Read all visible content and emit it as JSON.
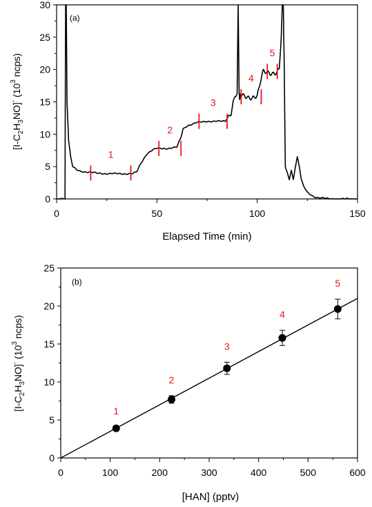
{
  "chart_data": [
    {
      "type": "line",
      "panel_label": "(a)",
      "xlabel": "Elapsed Time (min)",
      "ylabel": {
        "main": "[I-C",
        "sub1": "2",
        "mid1": "H",
        "sub2": "3",
        "mid2": "NO]",
        "sup1": "-",
        "unit_open": " (10",
        "sup2": "3",
        "unit_close": " ncps)"
      },
      "xlim": [
        0,
        150
      ],
      "ylim": [
        0,
        30
      ],
      "xticks": [
        0,
        50,
        100,
        150
      ],
      "yticks": [
        0,
        5,
        10,
        15,
        20,
        25,
        30
      ],
      "grid": false,
      "series": [
        {
          "x": [
            0,
            4.2,
            4.3,
            4.5,
            4.8,
            5.2,
            6,
            7,
            8,
            10,
            12,
            14,
            17,
            20,
            25,
            30,
            35,
            38,
            40,
            42,
            45,
            48,
            50,
            55,
            60,
            62,
            63,
            65,
            70,
            75,
            80,
            84,
            86,
            87,
            88,
            89,
            90,
            90.5,
            91,
            91.5,
            92,
            95,
            100,
            101,
            102,
            103,
            105,
            108,
            110,
            111,
            112,
            112.5,
            113,
            113.5,
            114,
            115,
            116,
            117,
            118,
            119,
            120,
            121,
            122,
            123,
            125,
            128,
            130,
            135,
            140,
            145,
            150
          ],
          "y": [
            0,
            0,
            12,
            30,
            30,
            15,
            9,
            6.5,
            5,
            4.5,
            4.3,
            4.2,
            4.1,
            4.0,
            3.9,
            3.9,
            3.9,
            3.9,
            4.2,
            5.5,
            7,
            7.6,
            7.8,
            7.8,
            8.0,
            9.5,
            10.8,
            11.3,
            11.8,
            12.0,
            12.0,
            12.0,
            13,
            13.5,
            15,
            16,
            16.2,
            30,
            16,
            15.8,
            15.8,
            15.8,
            15.9,
            17,
            18.5,
            19.5,
            19.6,
            19.6,
            19.6,
            20,
            25,
            30,
            30,
            20,
            5,
            4,
            3,
            4.5,
            3,
            5,
            6.5,
            5,
            3,
            2,
            1,
            0.4,
            0.2,
            0.05,
            0,
            0,
            0
          ]
        }
      ],
      "markers": [
        {
          "label": "1",
          "x_start": 17,
          "x_end": 37,
          "y": 4
        },
        {
          "label": "2",
          "x_start": 51,
          "x_end": 62,
          "y": 7.8
        },
        {
          "label": "3",
          "x_start": 71,
          "x_end": 85,
          "y": 12
        },
        {
          "label": "4",
          "x_start": 92,
          "x_end": 102,
          "y": 15.8
        },
        {
          "label": "5",
          "x_start": 105,
          "x_end": 110,
          "y": 19.7
        }
      ]
    },
    {
      "type": "scatter",
      "panel_label": "(b)",
      "xlabel": "[HAN] (pptv)",
      "ylabel": {
        "main": "[I-C",
        "sub1": "2",
        "mid1": "H",
        "sub2": "3",
        "mid2": "NO]",
        "sup1": "-",
        "unit_open": " (10",
        "sup2": "3",
        "unit_close": " ncps)"
      },
      "xlim": [
        0,
        600
      ],
      "ylim": [
        0,
        25
      ],
      "xticks": [
        0,
        100,
        200,
        300,
        400,
        500,
        600
      ],
      "yticks": [
        0,
        5,
        10,
        15,
        20,
        25
      ],
      "grid": false,
      "series": [
        {
          "points": [
            {
              "label": "1",
              "x": 112,
              "y": 3.9,
              "err": 0.2
            },
            {
              "label": "2",
              "x": 224,
              "y": 7.7,
              "err": 0.5
            },
            {
              "label": "3",
              "x": 336,
              "y": 11.8,
              "err": 0.8
            },
            {
              "label": "4",
              "x": 448,
              "y": 15.8,
              "err": 1.0
            },
            {
              "label": "5",
              "x": 560,
              "y": 19.6,
              "err": 1.3
            }
          ],
          "fit": {
            "x": [
              0,
              600
            ],
            "y": [
              0,
              21.0
            ]
          }
        }
      ]
    }
  ],
  "colors": {
    "data": "#000000",
    "marker": "#e8161b",
    "axis": "#000000"
  }
}
